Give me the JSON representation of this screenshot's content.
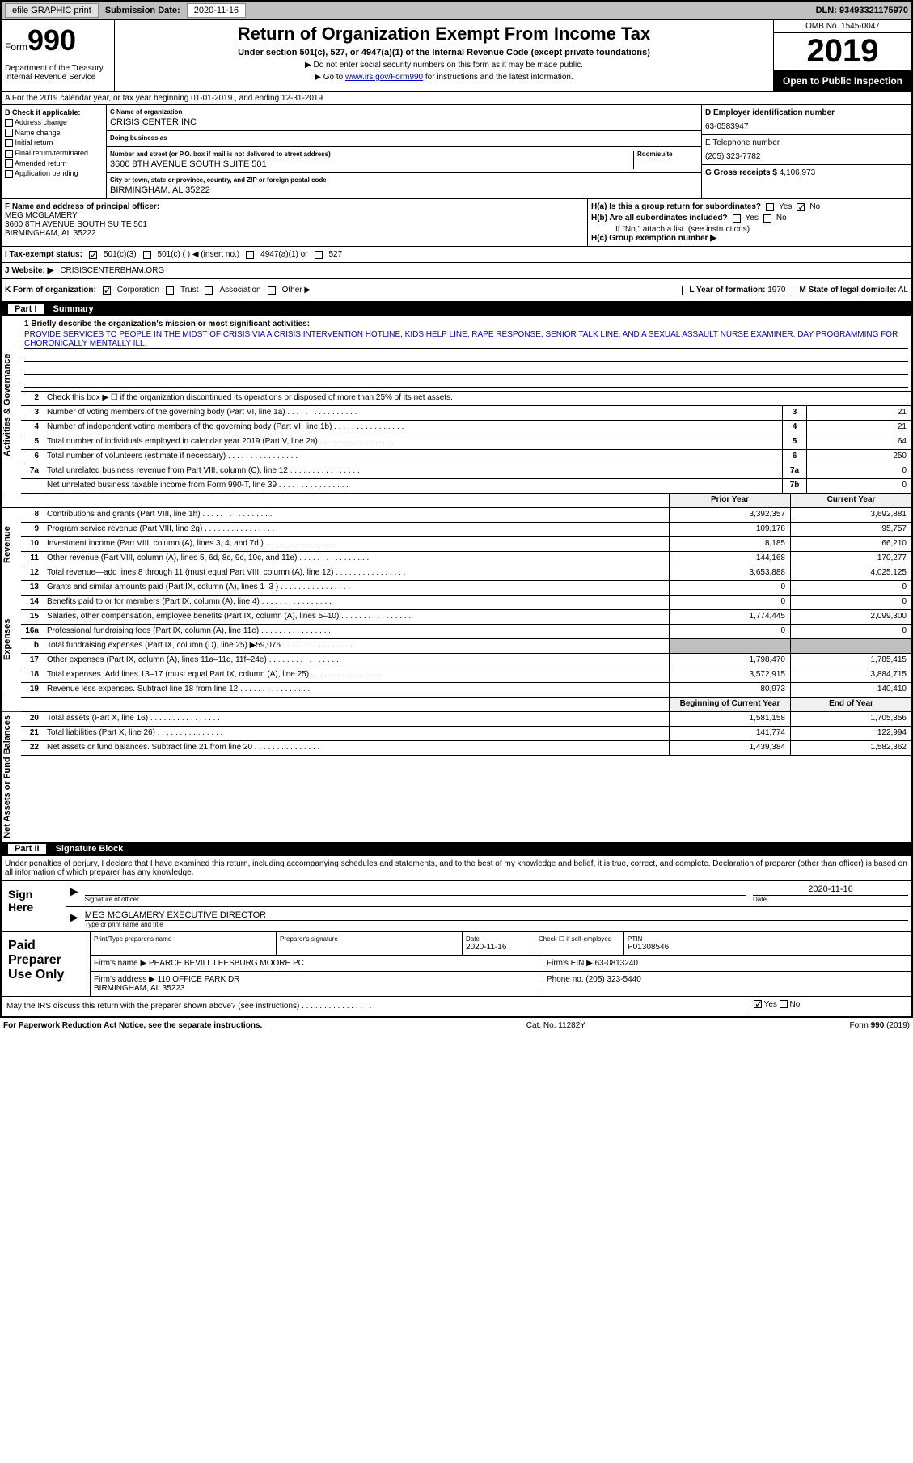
{
  "topbar": {
    "efile": "efile GRAPHIC print",
    "subdate_lbl": "Submission Date:",
    "subdate": "2020-11-16",
    "dln_lbl": "DLN:",
    "dln": "93493321175970"
  },
  "header": {
    "form_lbl": "Form",
    "form_num": "990",
    "dept": "Department of the Treasury\nInternal Revenue Service",
    "title": "Return of Organization Exempt From Income Tax",
    "subtitle": "Under section 501(c), 527, or 4947(a)(1) of the Internal Revenue Code (except private foundations)",
    "note1": "▶ Do not enter social security numbers on this form as it may be made public.",
    "note2_pre": "▶ Go to ",
    "note2_link": "www.irs.gov/Form990",
    "note2_post": " for instructions and the latest information.",
    "omb": "OMB No. 1545-0047",
    "year": "2019",
    "open": "Open to Public Inspection"
  },
  "row_a": "A For the 2019 calendar year, or tax year beginning 01-01-2019   , and ending 12-31-2019",
  "col_b": {
    "hdr": "B Check if applicable:",
    "items": [
      "Address change",
      "Name change",
      "Initial return",
      "Final return/terminated",
      "Amended return",
      "Application pending"
    ]
  },
  "col_c": {
    "name_lbl": "C Name of organization",
    "name": "CRISIS CENTER INC",
    "dba_lbl": "Doing business as",
    "dba": "",
    "addr_lbl": "Number and street (or P.O. box if mail is not delivered to street address)",
    "room_lbl": "Room/suite",
    "addr": "3600 8TH AVENUE SOUTH SUITE 501",
    "city_lbl": "City or town, state or province, country, and ZIP or foreign postal code",
    "city": "BIRMINGHAM, AL  35222"
  },
  "col_d": {
    "ein_lbl": "D Employer identification number",
    "ein": "63-0583947",
    "tel_lbl": "E Telephone number",
    "tel": "(205) 323-7782",
    "gross_lbl": "G Gross receipts $",
    "gross": "4,106,973"
  },
  "col_f": {
    "lbl": "F  Name and address of principal officer:",
    "name": "MEG MCGLAMERY",
    "addr": "3600 8TH AVENUE SOUTH SUITE 501\nBIRMINGHAM, AL  35222"
  },
  "col_h": {
    "ha": "H(a)  Is this a group return for subordinates?",
    "hb": "H(b)  Are all subordinates included?",
    "hb_note": "If \"No,\" attach a list. (see instructions)",
    "hc": "H(c)  Group exemption number ▶",
    "yes": "Yes",
    "no": "No"
  },
  "tax_status": {
    "lbl": "I  Tax-exempt status:",
    "o1": "501(c)(3)",
    "o2": "501(c) (  ) ◀ (insert no.)",
    "o3": "4947(a)(1) or",
    "o4": "527"
  },
  "website": {
    "lbl": "J  Website: ▶",
    "val": "CRISISCENTERBHAM.ORG"
  },
  "row_k": {
    "lbl": "K Form of organization:",
    "o1": "Corporation",
    "o2": "Trust",
    "o3": "Association",
    "o4": "Other ▶",
    "l_lbl": "L Year of formation:",
    "l_val": "1970",
    "m_lbl": "M State of legal domicile:",
    "m_val": "AL"
  },
  "part1": {
    "num": "Part I",
    "title": "Summary"
  },
  "mission": {
    "lbl": "1  Briefly describe the organization's mission or most significant activities:",
    "text": "PROVIDE SERVICES TO PEOPLE IN THE MIDST OF CRISIS VIA A CRISIS INTERVENTION HOTLINE, KIDS HELP LINE, RAPE RESPONSE, SENIOR TALK LINE, AND A SEXUAL ASSAULT NURSE EXAMINER. DAY PROGRAMMING FOR CHORONICALLY MENTALLY ILL."
  },
  "gov_lines": [
    {
      "n": "2",
      "t": "Check this box ▶ ☐  if the organization discontinued its operations or disposed of more than 25% of its net assets."
    },
    {
      "n": "3",
      "t": "Number of voting members of the governing body (Part VI, line 1a)",
      "cn": "3",
      "cv": "21"
    },
    {
      "n": "4",
      "t": "Number of independent voting members of the governing body (Part VI, line 1b)",
      "cn": "4",
      "cv": "21"
    },
    {
      "n": "5",
      "t": "Total number of individuals employed in calendar year 2019 (Part V, line 2a)",
      "cn": "5",
      "cv": "64"
    },
    {
      "n": "6",
      "t": "Total number of volunteers (estimate if necessary)",
      "cn": "6",
      "cv": "250"
    },
    {
      "n": "7a",
      "t": "Total unrelated business revenue from Part VIII, column (C), line 12",
      "cn": "7a",
      "cv": "0"
    },
    {
      "n": "",
      "t": "Net unrelated business taxable income from Form 990-T, line 39",
      "cn": "7b",
      "cv": "0"
    }
  ],
  "pyhdr": {
    "py": "Prior Year",
    "cy": "Current Year"
  },
  "rev_lines": [
    {
      "n": "8",
      "t": "Contributions and grants (Part VIII, line 1h)",
      "py": "3,392,357",
      "cy": "3,692,881"
    },
    {
      "n": "9",
      "t": "Program service revenue (Part VIII, line 2g)",
      "py": "109,178",
      "cy": "95,757"
    },
    {
      "n": "10",
      "t": "Investment income (Part VIII, column (A), lines 3, 4, and 7d )",
      "py": "8,185",
      "cy": "66,210"
    },
    {
      "n": "11",
      "t": "Other revenue (Part VIII, column (A), lines 5, 6d, 8c, 9c, 10c, and 11e)",
      "py": "144,168",
      "cy": "170,277"
    },
    {
      "n": "12",
      "t": "Total revenue—add lines 8 through 11 (must equal Part VIII, column (A), line 12)",
      "py": "3,653,888",
      "cy": "4,025,125"
    }
  ],
  "exp_lines": [
    {
      "n": "13",
      "t": "Grants and similar amounts paid (Part IX, column (A), lines 1–3 )",
      "py": "0",
      "cy": "0"
    },
    {
      "n": "14",
      "t": "Benefits paid to or for members (Part IX, column (A), line 4)",
      "py": "0",
      "cy": "0"
    },
    {
      "n": "15",
      "t": "Salaries, other compensation, employee benefits (Part IX, column (A), lines 5–10)",
      "py": "1,774,445",
      "cy": "2,099,300"
    },
    {
      "n": "16a",
      "t": "Professional fundraising fees (Part IX, column (A), line 11e)",
      "py": "0",
      "cy": "0"
    },
    {
      "n": "b",
      "t": "Total fundraising expenses (Part IX, column (D), line 25) ▶59,076",
      "py": "",
      "cy": "",
      "shade": true
    },
    {
      "n": "17",
      "t": "Other expenses (Part IX, column (A), lines 11a–11d, 11f–24e)",
      "py": "1,798,470",
      "cy": "1,785,415"
    },
    {
      "n": "18",
      "t": "Total expenses. Add lines 13–17 (must equal Part IX, column (A), line 25)",
      "py": "3,572,915",
      "cy": "3,884,715"
    },
    {
      "n": "19",
      "t": "Revenue less expenses. Subtract line 18 from line 12",
      "py": "80,973",
      "cy": "140,410"
    }
  ],
  "nahdr": {
    "py": "Beginning of Current Year",
    "cy": "End of Year"
  },
  "na_lines": [
    {
      "n": "20",
      "t": "Total assets (Part X, line 16)",
      "py": "1,581,158",
      "cy": "1,705,356"
    },
    {
      "n": "21",
      "t": "Total liabilities (Part X, line 26)",
      "py": "141,774",
      "cy": "122,994"
    },
    {
      "n": "22",
      "t": "Net assets or fund balances. Subtract line 21 from line 20",
      "py": "1,439,384",
      "cy": "1,582,362"
    }
  ],
  "vtabs": {
    "gov": "Activities & Governance",
    "rev": "Revenue",
    "exp": "Expenses",
    "na": "Net Assets or Fund Balances"
  },
  "part2": {
    "num": "Part II",
    "title": "Signature Block"
  },
  "sig_decl": "Under penalties of perjury, I declare that I have examined this return, including accompanying schedules and statements, and to the best of my knowledge and belief, it is true, correct, and complete. Declaration of preparer (other than officer) is based on all information of which preparer has any knowledge.",
  "sign": {
    "lbl": "Sign Here",
    "sig_lbl": "Signature of officer",
    "date": "2020-11-16",
    "date_lbl": "Date",
    "name": "MEG MCGLAMERY  EXECUTIVE DIRECTOR",
    "name_lbl": "Type or print name and title"
  },
  "prep": {
    "lbl": "Paid Preparer Use Only",
    "pname_lbl": "Print/Type preparer's name",
    "pname": "",
    "psig_lbl": "Preparer's signature",
    "pdate_lbl": "Date",
    "pdate": "2020-11-16",
    "check_lbl": "Check ☐ if self-employed",
    "ptin_lbl": "PTIN",
    "ptin": "P01308546",
    "firm_lbl": "Firm's name    ▶",
    "firm": "PEARCE BEVILL LEESBURG MOORE PC",
    "ein_lbl": "Firm's EIN ▶",
    "ein": "63-0813240",
    "addr_lbl": "Firm's address ▶",
    "addr": "110 OFFICE PARK DR\nBIRMINGHAM, AL  35223",
    "phone_lbl": "Phone no.",
    "phone": "(205) 323-5440"
  },
  "discuss": "May the IRS discuss this return with the preparer shown above? (see instructions)",
  "footer": {
    "pra": "For Paperwork Reduction Act Notice, see the separate instructions.",
    "cat": "Cat. No. 11282Y",
    "form": "Form 990 (2019)"
  }
}
